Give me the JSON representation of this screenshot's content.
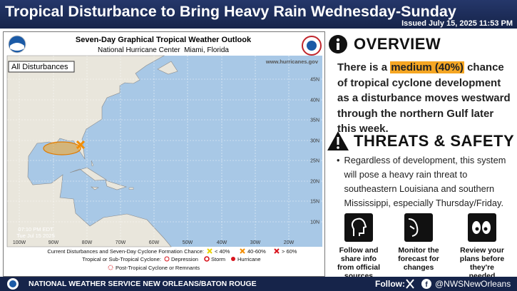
{
  "header": {
    "title": "Tropical Disturbance to Bring Heavy Rain Wednesday-Sunday",
    "issued": "Issued July 15, 2025 11:53 PM"
  },
  "map": {
    "title": "Seven-Day Graphical Tropical Weather Outlook",
    "subtitle": "National Hurricane Center  Miami, Florida",
    "tag": "All Disturbances",
    "url": "www.hurricanes.gov",
    "timestamp": [
      "07:10 PM EDT",
      "Tue Jul 15 2025"
    ],
    "lat_labels": [
      "45N",
      "40N",
      "35N",
      "30N",
      "25N",
      "20N",
      "15N",
      "10N"
    ],
    "lon_labels": [
      "100W",
      "90W",
      "80W",
      "70W",
      "60W",
      "50W",
      "40W",
      "30W",
      "20W"
    ],
    "legend": {
      "formation_title": "Current Disturbances and Seven-Day Cyclone Formation Chance:",
      "low": "< 40%",
      "medium": "40-60%",
      "high": "> 60%",
      "cyclone_title": "Tropical or Sub-Tropical Cyclone:",
      "depression": "Depression",
      "storm": "Storm",
      "hurricane": "Hurricane",
      "post_tropical": "Post-Tropical Cyclone or Remnants"
    }
  },
  "overview": {
    "heading": "OVERVIEW",
    "text_before": "There is a ",
    "highlight": "medium (40%)",
    "text_after": " chance of tropical cyclone development as a disturbance moves westward through the northern Gulf later this week."
  },
  "threats": {
    "heading": "THREATS & SAFETY",
    "bullet": "Regardless of development, this system will pose a heavy rain threat to southeastern Louisiana and southern Mississippi, especially Thursday/Friday."
  },
  "actions": [
    "Follow and share info from official sources",
    "Monitor the forecast for changes",
    "Review your plans before they're needed"
  ],
  "footer": {
    "office": "NATIONAL WEATHER SERVICE NEW ORLEANS/BATON ROUGE",
    "follow": "Follow:",
    "handle": "@NWSNewOrleans"
  }
}
